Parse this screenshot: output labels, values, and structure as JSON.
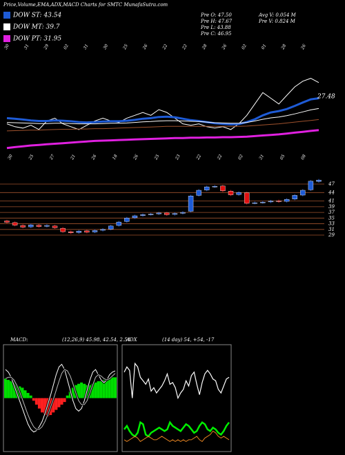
{
  "title": "Price,Volume,EMA,ADX,MACD Charts for SMTC MunafaSutra.com",
  "legend": [
    {
      "label": "DOW ST: 43.54",
      "color": "#1e5bd6"
    },
    {
      "label": "DOW MT: 39.7",
      "color": "#ffffff"
    },
    {
      "label": "DOW PT: 31.95",
      "color": "#e020e0"
    }
  ],
  "stats": [
    "Pre O: 47.50",
    "Pre H: 47.67",
    "Pre L: 43.88",
    "Pre C: 46.95",
    "Avg V: 0.054 M",
    "Pre V: 0.824 M"
  ],
  "chart_data": [
    {
      "type": "ema",
      "annotation": "27.48",
      "ylim": [
        20,
        60
      ],
      "x_labels": [
        "30",
        "31",
        "29",
        "02",
        "31",
        "30",
        "25",
        "26",
        "22",
        "22",
        "28",
        "26",
        "02",
        "01",
        "28",
        "26"
      ],
      "series": [
        {
          "color": "#ffffff",
          "width": 1,
          "values": [
            31,
            30,
            29.5,
            30.5,
            29,
            32,
            33,
            31,
            30,
            29,
            30.5,
            32,
            33,
            32,
            31.5,
            33,
            34,
            35,
            34,
            36,
            35,
            33,
            31,
            30.5,
            31,
            30,
            29.5,
            30,
            29,
            31,
            34,
            38,
            42,
            40,
            38,
            41,
            44,
            46,
            47,
            45.5
          ]
        },
        {
          "color": "#1e5bd6",
          "width": 3,
          "values": [
            33,
            32.8,
            32.5,
            32.2,
            32,
            32,
            32.2,
            32.1,
            31.9,
            31.6,
            31.5,
            31.6,
            31.8,
            31.9,
            31.9,
            32.1,
            32.4,
            32.8,
            33,
            33.4,
            33.5,
            33.3,
            32.8,
            32.3,
            32,
            31.6,
            31.2,
            31,
            30.8,
            30.9,
            31.6,
            32.6,
            34,
            35,
            35.5,
            36.2,
            37.3,
            38.5,
            39.6,
            40
          ]
        },
        {
          "color": "#ffffff",
          "width": 1,
          "values": [
            31.5,
            31.4,
            31.3,
            31.2,
            31.1,
            31.1,
            31.2,
            31.2,
            31.1,
            31,
            31,
            31,
            31.1,
            31.2,
            31.2,
            31.3,
            31.5,
            31.7,
            31.8,
            32,
            32.1,
            32.1,
            32,
            31.9,
            31.8,
            31.6,
            31.4,
            31.3,
            31.2,
            31.2,
            31.5,
            32,
            32.6,
            33.1,
            33.4,
            33.9,
            34.5,
            35.2,
            35.9,
            36.4
          ]
        },
        {
          "color": "#a0522d",
          "width": 1,
          "values": [
            28.5,
            28.6,
            28.7,
            28.8,
            28.8,
            28.9,
            29,
            29.1,
            29.1,
            29.2,
            29.2,
            29.3,
            29.3,
            29.4,
            29.5,
            29.6,
            29.7,
            29.8,
            29.9,
            30,
            30.1,
            30.1,
            30.1,
            30.1,
            30.1,
            30.1,
            30.1,
            30.1,
            30.1,
            30.1,
            30.2,
            30.4,
            30.6,
            30.8,
            31,
            31.3,
            31.6,
            31.9,
            32.2,
            32.5
          ]
        },
        {
          "color": "#e020e0",
          "width": 3,
          "values": [
            22.5,
            22.8,
            23.1,
            23.4,
            23.6,
            23.8,
            24,
            24.2,
            24.4,
            24.6,
            24.8,
            25,
            25.1,
            25.2,
            25.3,
            25.4,
            25.5,
            25.6,
            25.7,
            25.8,
            25.9,
            26,
            26,
            26.1,
            26.1,
            26.2,
            26.2,
            26.3,
            26.3,
            26.4,
            26.5,
            26.7,
            26.9,
            27.1,
            27.3,
            27.6,
            27.9,
            28.2,
            28.5,
            28.8
          ]
        }
      ]
    },
    {
      "type": "candlestick",
      "ylim": [
        26.5,
        52
      ],
      "yticks": [
        47,
        44,
        41,
        39,
        37,
        35,
        33,
        31,
        29
      ],
      "grid": true,
      "x_labels": [
        "30",
        "25",
        "27",
        "21",
        "26",
        "18",
        "26",
        "25",
        "23",
        "22",
        "22",
        "02",
        "31",
        "05",
        "08"
      ],
      "up_color": "#1e5bd6",
      "down_color": "#e01010",
      "open": [
        34.0,
        33.4,
        32.4,
        31.9,
        32.5,
        32.1,
        32.2,
        31.4,
        30.2,
        29.9,
        30.5,
        30.1,
        30.7,
        31.1,
        32.4,
        33.8,
        35.1,
        35.9,
        36.3,
        36.5,
        36.8,
        36.3,
        36.7,
        37.4,
        43.0,
        44.9,
        46.1,
        46.3,
        44.5,
        43.3,
        43.9,
        40.3,
        40.5,
        40.7,
        41.1,
        40.9,
        41.7,
        43.1,
        45.0,
        47.9
      ],
      "high": [
        34.4,
        33.8,
        32.8,
        33.0,
        32.9,
        32.8,
        32.6,
        31.8,
        30.6,
        30.8,
        30.9,
        31.0,
        31.4,
        32.6,
        34.0,
        35.4,
        36.2,
        36.6,
        36.8,
        37.2,
        37.2,
        37.0,
        37.4,
        43.2,
        45.2,
        46.4,
        46.6,
        46.7,
        44.9,
        44.4,
        44.3,
        40.8,
        41.0,
        41.4,
        41.5,
        42.0,
        43.4,
        45.2,
        48.4,
        48.8
      ],
      "low": [
        33.1,
        32.1,
        31.4,
        31.5,
        31.6,
        31.7,
        31.2,
        29.8,
        29.4,
        29.5,
        29.6,
        29.7,
        30.3,
        30.7,
        32.0,
        33.4,
        34.7,
        35.5,
        35.9,
        36.1,
        35.8,
        35.9,
        36.3,
        37.0,
        42.6,
        44.5,
        45.7,
        44.2,
        42.8,
        42.9,
        39.8,
        39.9,
        40.1,
        40.3,
        40.4,
        40.5,
        41.3,
        42.7,
        44.6,
        47.5
      ],
      "close": [
        33.5,
        32.5,
        31.8,
        32.6,
        32.0,
        32.4,
        31.6,
        30.2,
        29.8,
        30.4,
        30.0,
        30.6,
        31.0,
        32.2,
        33.6,
        35.0,
        35.8,
        36.2,
        36.4,
        36.8,
        36.2,
        36.6,
        37.0,
        42.8,
        44.8,
        46.0,
        46.2,
        44.6,
        43.2,
        44.0,
        40.2,
        40.4,
        40.6,
        41.0,
        40.8,
        41.6,
        43.0,
        44.8,
        48.0,
        48.4
      ]
    },
    {
      "type": "macd",
      "title": "MACD:",
      "params": "(12,26,9) 45.98, 42.54, 2.54",
      "ylim": [
        -4,
        4
      ],
      "histogram": [
        1.5,
        1.4,
        1.3,
        1.2,
        1.0,
        0.9,
        0.8,
        0.6,
        0.4,
        0.2,
        -0.2,
        -0.5,
        -0.8,
        -1.1,
        -1.3,
        -1.4,
        -1.3,
        -1.1,
        -0.9,
        -0.7,
        -0.5,
        -0.3,
        0.2,
        0.5,
        0.8,
        1.0,
        1.1,
        1.2,
        1.1,
        1.0,
        1.0,
        1.1,
        1.2,
        1.3,
        1.3,
        1.4,
        1.5,
        1.5,
        1.6,
        1.6
      ],
      "pos_color": "#00dd00",
      "neg_color": "#ff2020",
      "series": [
        {
          "color": "#ffffff",
          "values": [
            2.2,
            2.0,
            1.6,
            1.0,
            0.4,
            -0.2,
            -0.8,
            -1.4,
            -2.0,
            -2.4,
            -2.6,
            -2.5,
            -2.2,
            -1.8,
            -1.2,
            -0.5,
            0.2,
            1.0,
            1.8,
            2.4,
            2.6,
            2.2,
            1.4,
            0.6,
            -0.2,
            -0.8,
            -1.0,
            -0.8,
            -0.2,
            0.6,
            1.4,
            2.0,
            2.2,
            1.8,
            1.4,
            1.2,
            1.4,
            1.8,
            2.0,
            2.1
          ]
        },
        {
          "color": "#bbbbbb",
          "values": [
            1.5,
            1.6,
            1.6,
            1.4,
            1.0,
            0.5,
            -0.1,
            -0.7,
            -1.3,
            -1.8,
            -2.2,
            -2.4,
            -2.4,
            -2.2,
            -1.8,
            -1.3,
            -0.7,
            -0.1,
            0.6,
            1.3,
            1.9,
            2.2,
            2.1,
            1.7,
            1.1,
            0.4,
            -0.2,
            -0.5,
            -0.5,
            -0.2,
            0.4,
            1.0,
            1.6,
            1.8,
            1.7,
            1.5,
            1.4,
            1.5,
            1.7,
            1.9
          ]
        }
      ]
    },
    {
      "type": "adx",
      "title": "ADX",
      "params": "(14 day) 54, +54, -17",
      "ylim": [
        0,
        60
      ],
      "series": [
        {
          "color": "#ffffff",
          "width": 1.2,
          "values": [
            45,
            48,
            46,
            30,
            50,
            48,
            42,
            40,
            38,
            41,
            34,
            36,
            33,
            35,
            37,
            40,
            44,
            38,
            39,
            36,
            30,
            33,
            35,
            40,
            37,
            43,
            45,
            38,
            32,
            39,
            44,
            46,
            44,
            41,
            40,
            35,
            33,
            37,
            41,
            42
          ]
        },
        {
          "color": "#00ee00",
          "width": 2.5,
          "values": [
            12,
            14,
            11,
            9,
            8,
            10,
            16,
            15,
            9,
            8,
            10,
            11,
            12,
            13,
            12,
            11,
            12,
            16,
            14,
            13,
            12,
            11,
            13,
            15,
            14,
            12,
            10,
            11,
            14,
            16,
            15,
            12,
            11,
            13,
            12,
            10,
            9,
            11,
            14,
            16
          ]
        },
        {
          "color": "#e08020",
          "width": 1,
          "values": [
            6,
            5,
            6,
            7,
            8,
            7,
            5,
            6,
            7,
            8,
            7,
            6,
            6,
            7,
            8,
            7,
            6,
            5,
            6,
            5,
            6,
            5,
            6,
            5,
            6,
            6,
            7,
            8,
            6,
            5,
            7,
            8,
            9,
            11,
            10,
            8,
            7,
            8,
            7,
            6
          ]
        }
      ]
    }
  ]
}
